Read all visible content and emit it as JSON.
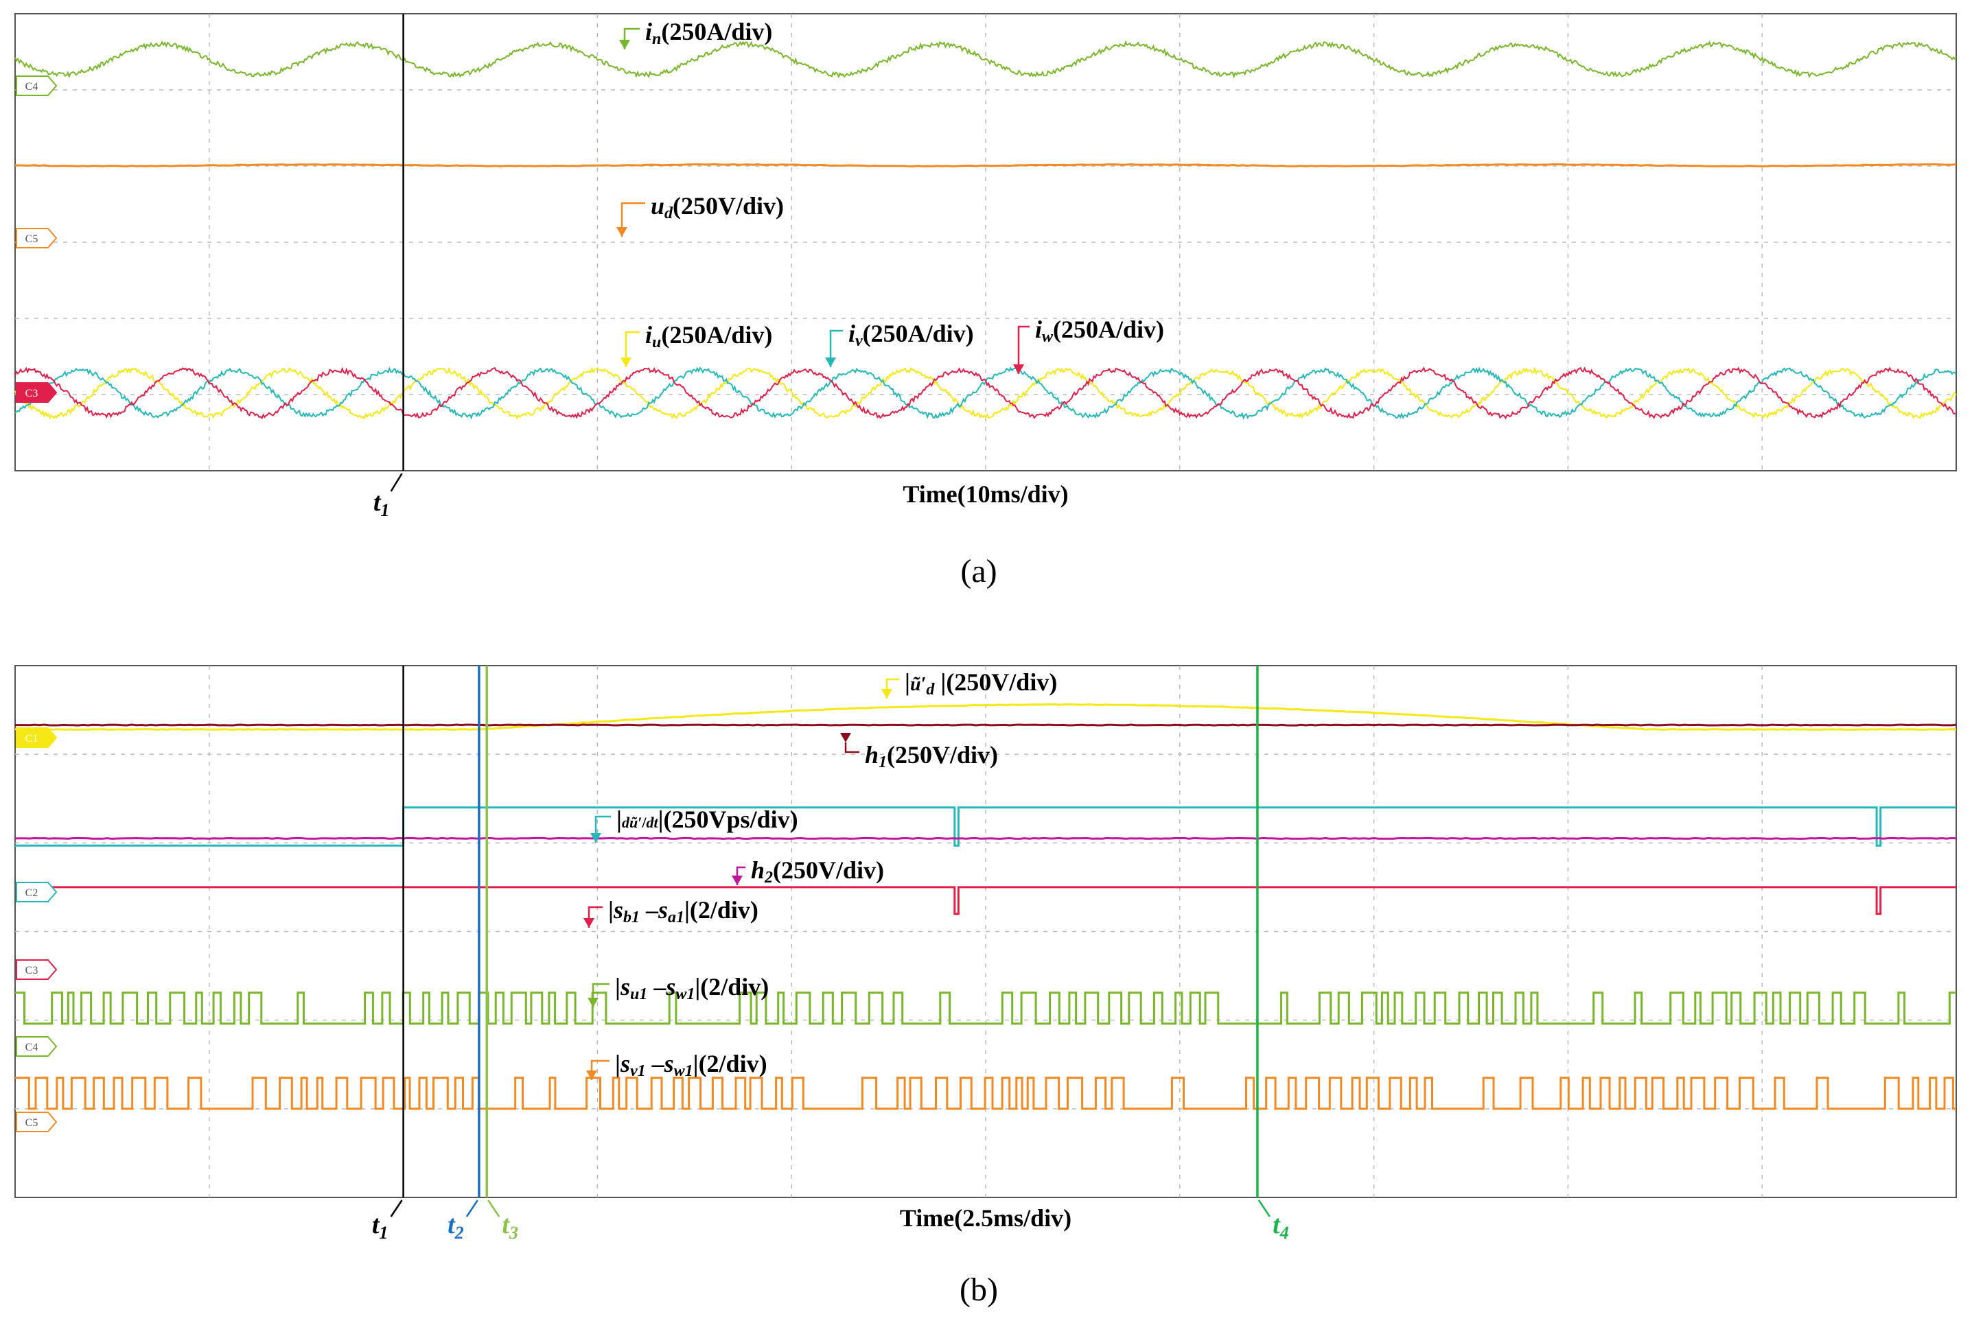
{
  "chart_data": [
    {
      "type": "line",
      "panel_label": "(a)",
      "xlabel": "Time(10ms/div)",
      "x_divisions": 10,
      "y_divisions": 6,
      "grid": true,
      "markers": [
        {
          "name": "t",
          "sub": "1",
          "time_div": 2.0,
          "color": "#000000"
        }
      ],
      "channels": [
        {
          "id": "C4",
          "color": "#7ab62c"
        },
        {
          "id": "C5",
          "color": "#f28a23"
        },
        {
          "id": "C3",
          "color": "#e0204a"
        }
      ],
      "series": [
        {
          "name": "i_n",
          "sym": "i",
          "sub": "n",
          "scale": "(250A/div)",
          "color": "#7ab62c",
          "kind": "sine",
          "offset_div": 0.6,
          "amplitude_div": 0.2,
          "period_div": 1.0,
          "phase_deg": 0
        },
        {
          "name": "u_d",
          "sym": "u",
          "sub": "d",
          "scale": "(250V/div)",
          "color": "#f28a23",
          "kind": "flat",
          "offset_div": 1.99,
          "ripple_div": 0.01
        },
        {
          "name": "i_u",
          "sym": "i",
          "sub": "u",
          "scale": "(250A/div)",
          "color": "#f5e814",
          "kind": "sine",
          "offset_div": 4.98,
          "amplitude_div": 0.3,
          "period_div": 0.8,
          "phase_deg": 0
        },
        {
          "name": "i_v",
          "sym": "i",
          "sub": "v",
          "scale": "(250A/div)",
          "color": "#26b7b8",
          "kind": "sine",
          "offset_div": 4.98,
          "amplitude_div": 0.3,
          "period_div": 0.8,
          "phase_deg": 120
        },
        {
          "name": "i_w",
          "sym": "i",
          "sub": "w",
          "scale": "(250A/div)",
          "color": "#e0204a",
          "kind": "sine",
          "offset_div": 4.98,
          "amplitude_div": 0.3,
          "period_div": 0.8,
          "phase_deg": 240
        }
      ]
    },
    {
      "type": "line",
      "panel_label": "(b)",
      "xlabel": "Time(2.5ms/div)",
      "x_divisions": 10,
      "y_divisions": 6,
      "grid": true,
      "markers": [
        {
          "name": "t",
          "sub": "1",
          "time_div": 2.0,
          "color": "#000000"
        },
        {
          "name": "t",
          "sub": "2",
          "time_div": 2.39,
          "color": "#1a6fc2"
        },
        {
          "name": "t",
          "sub": "3",
          "time_div": 2.43,
          "color": "#8bc34a"
        },
        {
          "name": "t",
          "sub": "4",
          "time_div": 6.4,
          "color": "#1db34a"
        }
      ],
      "channels": [
        {
          "id": "C1",
          "color": "#f5e814"
        },
        {
          "id": "C2",
          "color": "#26b7b8"
        },
        {
          "id": "C3",
          "color": "#e0204a"
        },
        {
          "id": "C4",
          "color": "#7ab62c"
        },
        {
          "id": "C5",
          "color": "#f28a23"
        }
      ],
      "series": [
        {
          "name": "|u~'_d|",
          "scale": "(250V/div)",
          "color": "#f5e814",
          "kind": "hump",
          "baseline_div": 0.72,
          "peak_div": 0.28,
          "start_div": 2.4,
          "end_div": 8.4
        },
        {
          "name": "h_1",
          "sym": "h",
          "sub": "1",
          "scale": "(250V/div)",
          "color": "#8b0d1e",
          "kind": "flat",
          "offset_div": 0.67,
          "ripple_div": 0.0
        },
        {
          "name": "|du~'_d/dt|",
          "scale": "(250Vps/div)",
          "color": "#26b7b8",
          "kind": "step",
          "low_div": 2.03,
          "high_div": 1.6,
          "step_at_div": 2.0,
          "dips_at_div": [
            4.85,
            9.6
          ]
        },
        {
          "name": "h_2",
          "sym": "h",
          "sub": "2",
          "scale": "(250V/div)",
          "color": "#c0179a",
          "kind": "flat",
          "offset_div": 1.95,
          "ripple_div": 0.0
        },
        {
          "name": "|s_b1 - s_a1|",
          "scale": "(2/div)",
          "color": "#e0204a",
          "kind": "flat_dips",
          "offset_div": 2.5,
          "dips_at_div": [
            4.85,
            9.6
          ],
          "dip_depth_div": 0.3
        },
        {
          "name": "|s_u1 - s_w1|",
          "scale": "(2/div)",
          "color": "#7ab62c",
          "kind": "pwm",
          "low_div": 4.04,
          "high_div": 3.69
        },
        {
          "name": "|s_v1 - s_w1|",
          "scale": "(2/div)",
          "color": "#f28a23",
          "kind": "pwm",
          "low_div": 5.0,
          "high_div": 4.65
        }
      ]
    }
  ],
  "panel_a": {
    "label": "(a)",
    "xlabel": "Time(10ms/div)"
  },
  "panel_b": {
    "label": "(b)",
    "xlabel": "Time(2.5ms/div)"
  }
}
